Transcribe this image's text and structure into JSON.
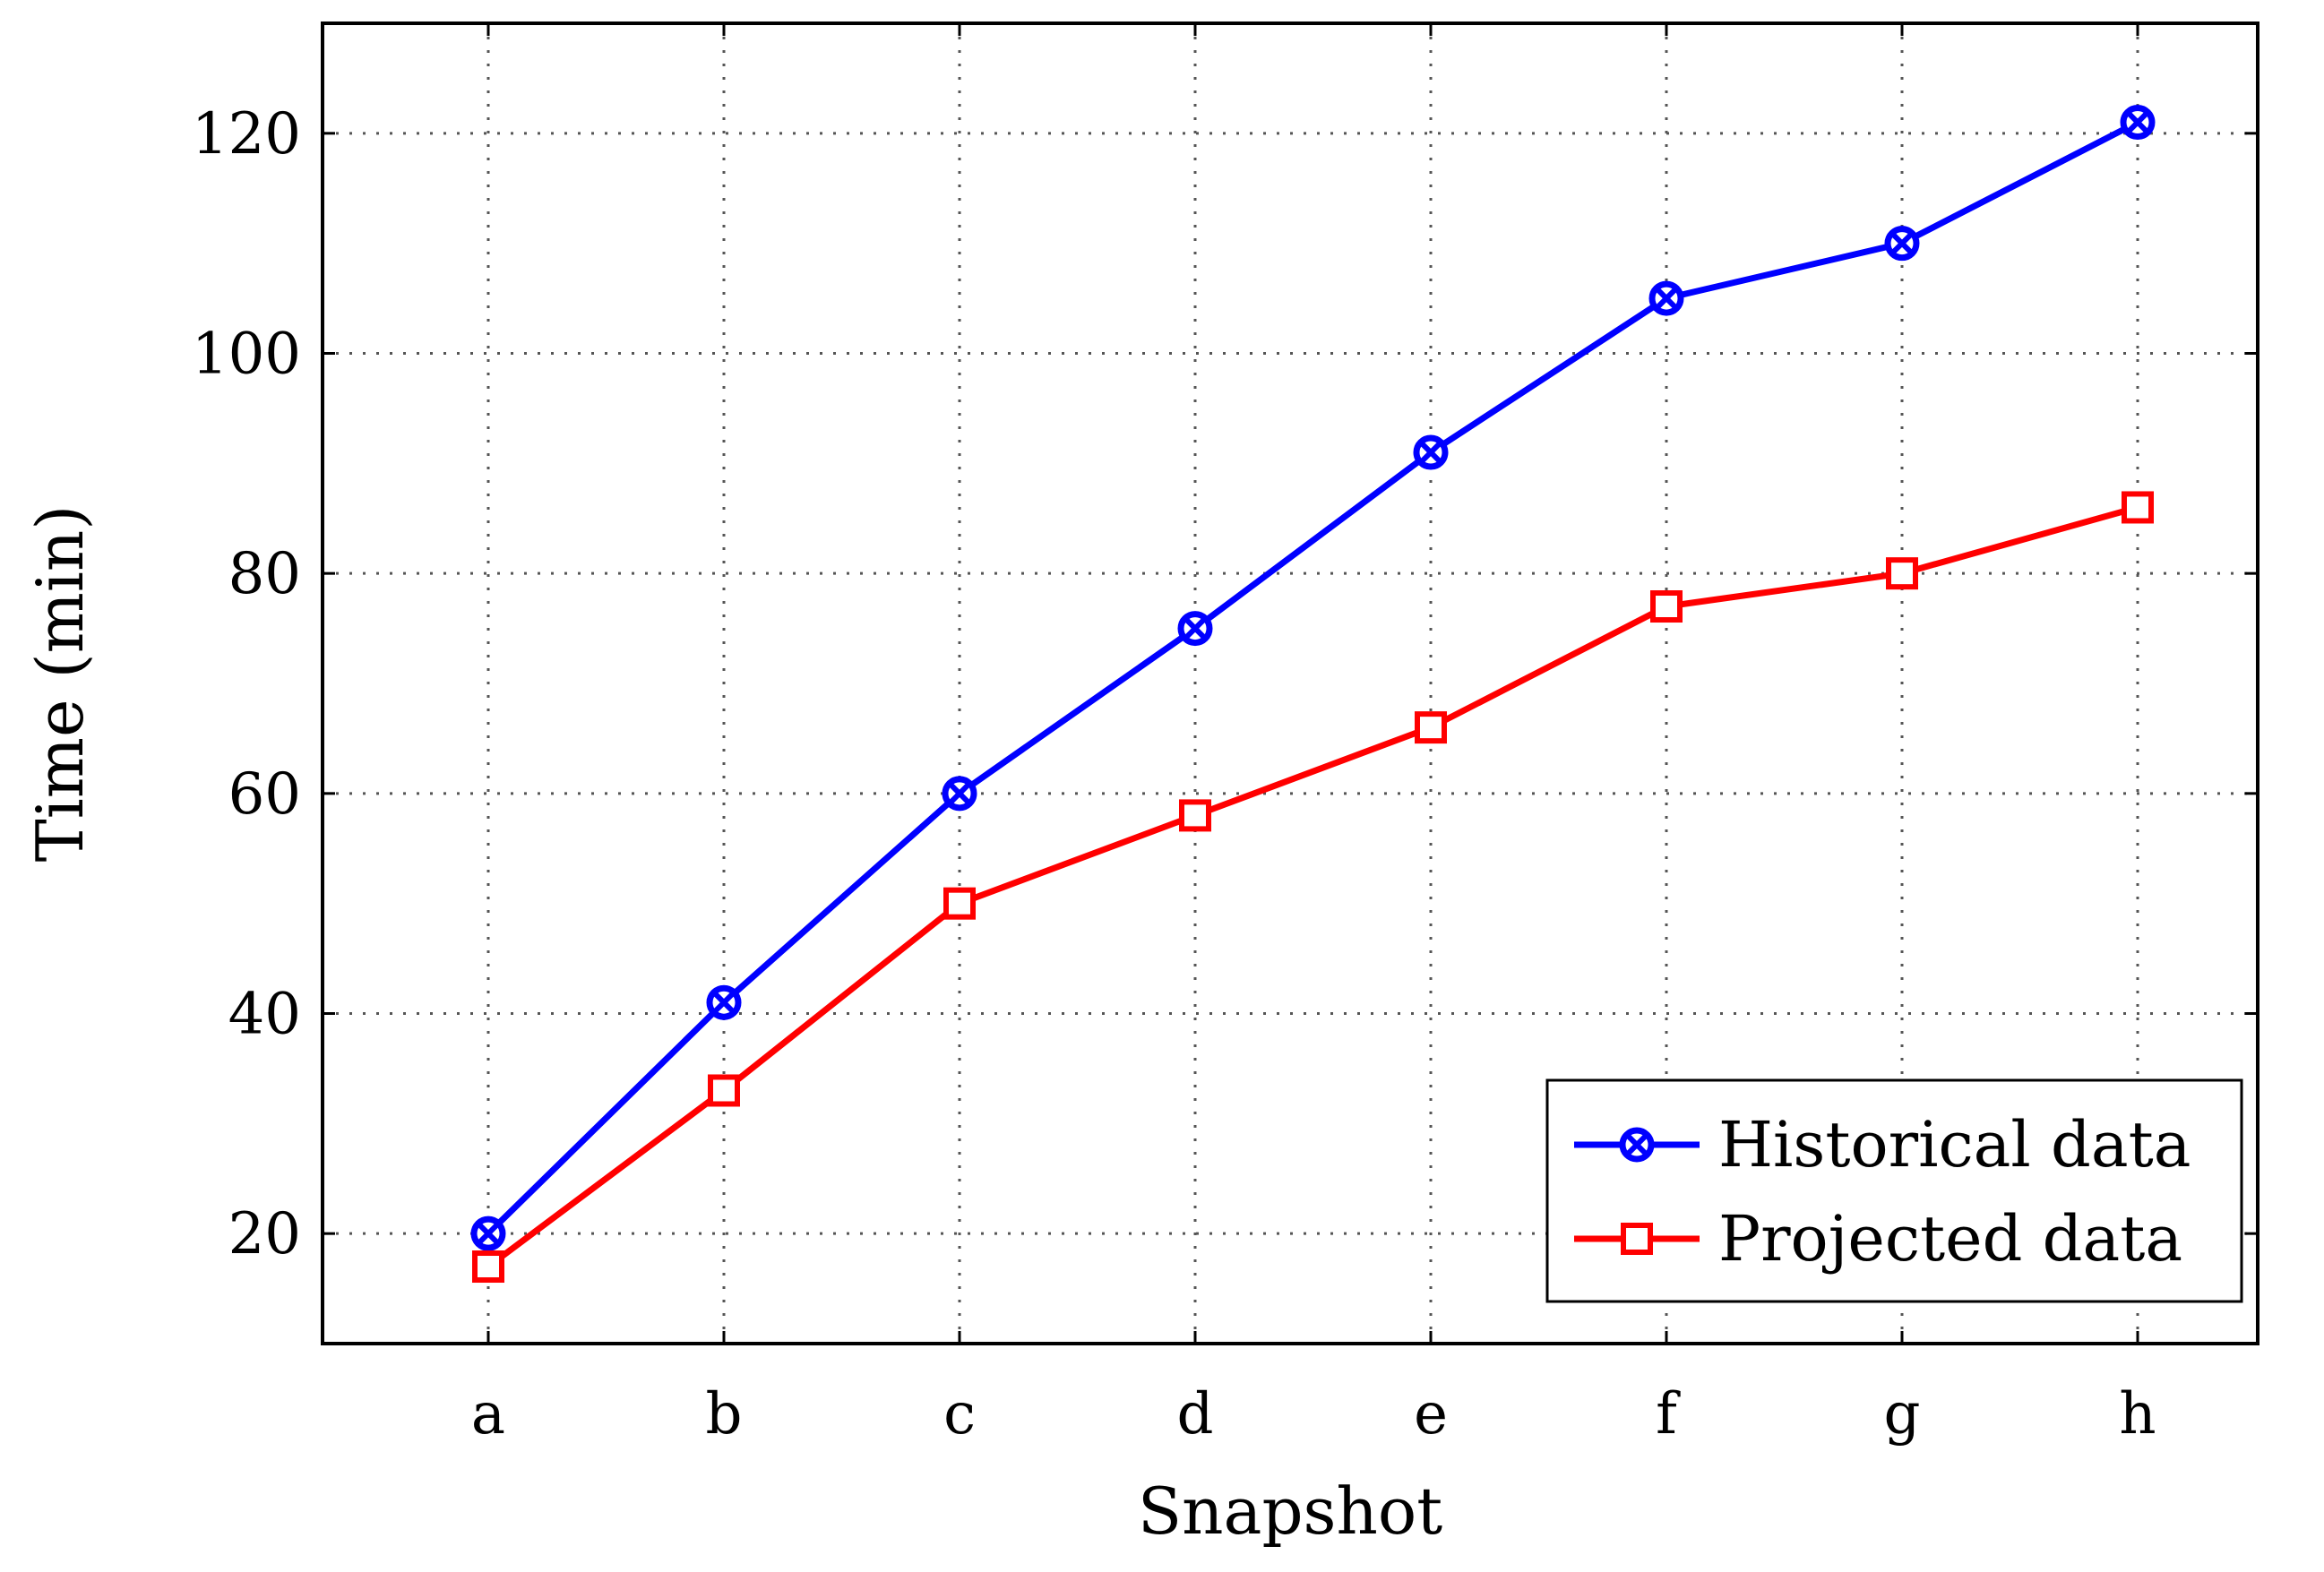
{
  "chart_data": {
    "type": "line",
    "title": "",
    "xlabel": "Snapshot",
    "ylabel": "Time (min)",
    "categories": [
      "a",
      "b",
      "c",
      "d",
      "e",
      "f",
      "g",
      "h"
    ],
    "ylim": [
      10,
      130
    ],
    "yticks": [
      20,
      40,
      60,
      80,
      100,
      120
    ],
    "grid": true,
    "legend_position": "bottom-right",
    "series": [
      {
        "name": "Historical data",
        "color": "#0000ff",
        "marker": "circle-x",
        "values": [
          20,
          41,
          60,
          75,
          91,
          105,
          110,
          121
        ]
      },
      {
        "name": "Projected data",
        "color": "#ff0000",
        "marker": "square",
        "values": [
          17,
          33,
          50,
          58,
          66,
          77,
          80,
          86
        ]
      }
    ]
  }
}
